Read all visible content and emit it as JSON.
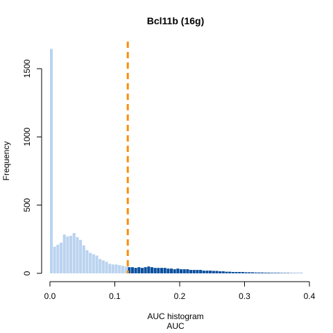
{
  "chart_data": {
    "type": "bar",
    "title": "Bcl11b (16g)",
    "xlabel": "AUC",
    "xlabel_sub": "AUC histogram",
    "ylabel": "Frequency",
    "xlim": [
      0,
      0.4
    ],
    "ylim": [
      0,
      1650
    ],
    "x_ticks": [
      0.0,
      0.1,
      0.2,
      0.3,
      0.4
    ],
    "x_tick_labels": [
      "0.0",
      "0.1",
      "0.2",
      "0.3",
      "0.4"
    ],
    "y_ticks": [
      0,
      500,
      1000,
      1500
    ],
    "y_tick_labels": [
      "0",
      "500",
      "1000",
      "1500"
    ],
    "bin_width": 0.005,
    "bin_start": 0.0,
    "threshold": 0.12,
    "colors": {
      "below_threshold": "#bad3ef",
      "above_threshold": "#0b4f9e",
      "threshold_line": "#ff8c00"
    },
    "values": [
      1645,
      195,
      210,
      225,
      285,
      270,
      275,
      295,
      265,
      245,
      205,
      170,
      150,
      140,
      130,
      105,
      95,
      85,
      70,
      65,
      65,
      60,
      55,
      50,
      45,
      45,
      40,
      45,
      40,
      45,
      50,
      45,
      40,
      40,
      40,
      40,
      35,
      35,
      30,
      35,
      30,
      30,
      30,
      25,
      25,
      25,
      25,
      20,
      20,
      20,
      18,
      18,
      15,
      15,
      12,
      12,
      10,
      10,
      10,
      10,
      8,
      8,
      8,
      6,
      6,
      6,
      5,
      5,
      4,
      4,
      4,
      3,
      3,
      3,
      2,
      2,
      2,
      2
    ]
  }
}
